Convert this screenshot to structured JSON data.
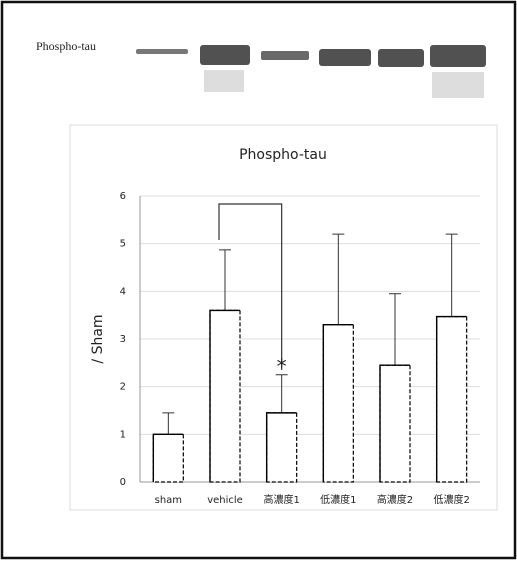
{
  "blot": {
    "label": "Phospho-tau"
  },
  "chart_data": {
    "type": "bar",
    "title": "Phospho-tau",
    "y_label": "/ Sham",
    "categories": [
      "sham",
      "vehicle",
      "高濃度1",
      "低濃度1",
      "高濃度2",
      "低濃度2"
    ],
    "values": [
      1.0,
      3.6,
      1.45,
      3.3,
      2.45,
      3.47
    ],
    "errors": [
      0.45,
      1.27,
      0.8,
      1.9,
      1.5,
      1.73
    ],
    "color": "#ffffff",
    "ylim": [
      0,
      6
    ],
    "yticks": [
      0,
      1,
      2,
      3,
      4,
      5,
      6
    ],
    "grid": true,
    "annotation": "*"
  }
}
